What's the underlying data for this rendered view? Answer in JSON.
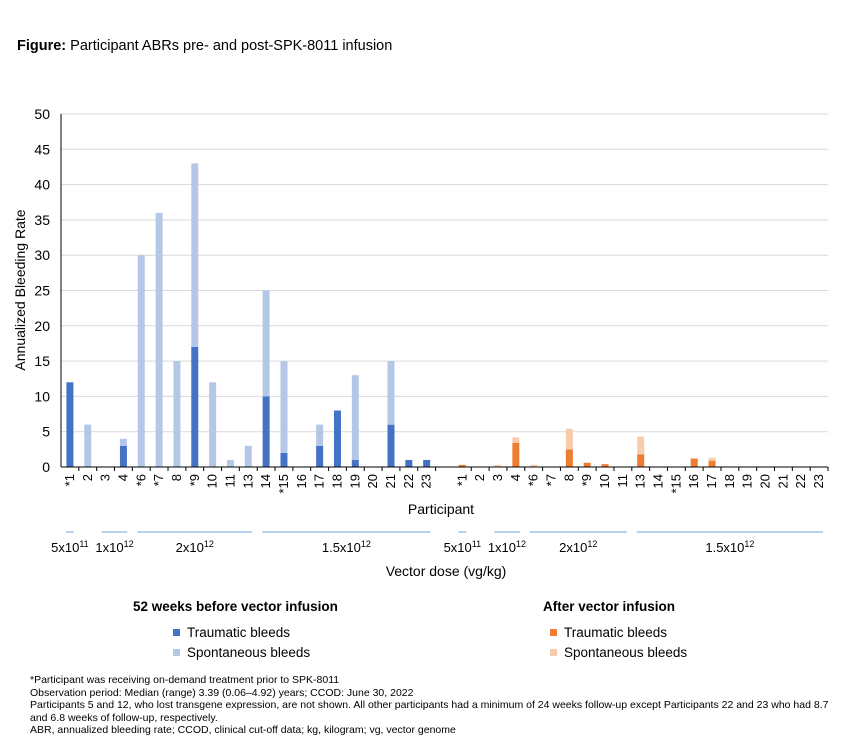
{
  "figure": {
    "label": "Figure:",
    "title": "Participant ABRs pre- and post-SPK-8011 infusion"
  },
  "colors": {
    "pre_traumatic": "#4472C4",
    "pre_spontaneous": "#B4C7E7",
    "post_traumatic": "#ED7D31",
    "post_spontaneous": "#F8CBAD",
    "axis": "#000000",
    "gridline": "#D9D9D9",
    "group_line": "#9DC3E6"
  },
  "chart_data": {
    "type": "bar",
    "stacked": true,
    "title": "Participant ABRs pre- and post-SPK-8011 infusion",
    "xlabel": "Participant",
    "ylabel": "Annualized Bleeding Rate",
    "ylim": [
      0,
      50
    ],
    "yticks": [
      0,
      5,
      10,
      15,
      20,
      25,
      30,
      35,
      40,
      45,
      50
    ],
    "grid": true,
    "secondary_xlabel": "Vector dose (vg/kg)",
    "panels": [
      {
        "name": "52 weeks before vector infusion",
        "categories": [
          "*1",
          "2",
          "3",
          "4",
          "*6",
          "*7",
          "8",
          "*9",
          "10",
          "11",
          "13",
          "14",
          "*15",
          "16",
          "17",
          "18",
          "19",
          "20",
          "21",
          "22",
          "23"
        ],
        "series": [
          {
            "name": "Traumatic bleeds",
            "values": [
              12,
              0,
              0,
              3,
              0,
              0,
              0,
              17,
              0,
              0,
              0,
              10,
              2,
              0,
              3,
              8,
              1,
              0,
              6,
              1,
              1
            ]
          },
          {
            "name": "Spontaneous bleeds",
            "values": [
              0,
              6,
              0,
              1,
              30,
              36,
              15,
              26,
              12,
              1,
              3,
              15,
              13,
              0,
              3,
              0,
              12,
              0,
              9,
              0,
              0
            ]
          }
        ],
        "dose_groups": [
          {
            "label": "5x10",
            "exp": "11"
          },
          {
            "label": "1x10",
            "exp": "12"
          },
          {
            "label": "2x10",
            "exp": "12"
          },
          {
            "label": "1.5x10",
            "exp": "12"
          }
        ]
      },
      {
        "name": "After vector infusion",
        "categories": [
          "*1",
          "2",
          "3",
          "4",
          "*6",
          "*7",
          "8",
          "*9",
          "10",
          "11",
          "13",
          "14",
          "*15",
          "16",
          "17",
          "18",
          "19",
          "20",
          "21",
          "22",
          "23"
        ],
        "series": [
          {
            "name": "Traumatic bleeds",
            "values": [
              0.3,
              0,
              0,
              3.4,
              0,
              0,
              2.5,
              0.6,
              0.4,
              0,
              1.8,
              0,
              0,
              1.2,
              0.9,
              0,
              0,
              0,
              0,
              0,
              0
            ]
          },
          {
            "name": "Spontaneous bleeds",
            "values": [
              0,
              0,
              0.3,
              0.8,
              0.3,
              0,
              2.9,
              0,
              0,
              0,
              2.5,
              0,
              0,
              0,
              0.4,
              0,
              0,
              0,
              0,
              0,
              0
            ]
          }
        ],
        "dose_groups": [
          {
            "label": "5x10",
            "exp": "11"
          },
          {
            "label": "1x10",
            "exp": "12"
          },
          {
            "label": "2x10",
            "exp": "12"
          },
          {
            "label": "1.5x10",
            "exp": "12"
          }
        ]
      }
    ]
  },
  "legend": {
    "pre": {
      "title": "52 weeks before vector infusion",
      "traumatic": "Traumatic bleeds",
      "spontaneous": "Spontaneous bleeds"
    },
    "post": {
      "title": "After vector infusion",
      "traumatic": "Traumatic bleeds",
      "spontaneous": "Spontaneous bleeds"
    }
  },
  "footnotes": [
    "*Participant was receiving on-demand treatment prior to SPK-8011",
    "Observation period: Median (range) 3.39 (0.06–4.92) years; CCOD: June 30, 2022",
    "Participants 5 and 12, who lost transgene expression, are not shown. All other participants had a minimum of 24 weeks follow-up except Participants 22 and 23 who had 8.7 and 6.8 weeks of follow-up, respectively.",
    "ABR, annualized bleeding rate; CCOD, clinical cut-off data; kg, kilogram; vg, vector genome"
  ]
}
